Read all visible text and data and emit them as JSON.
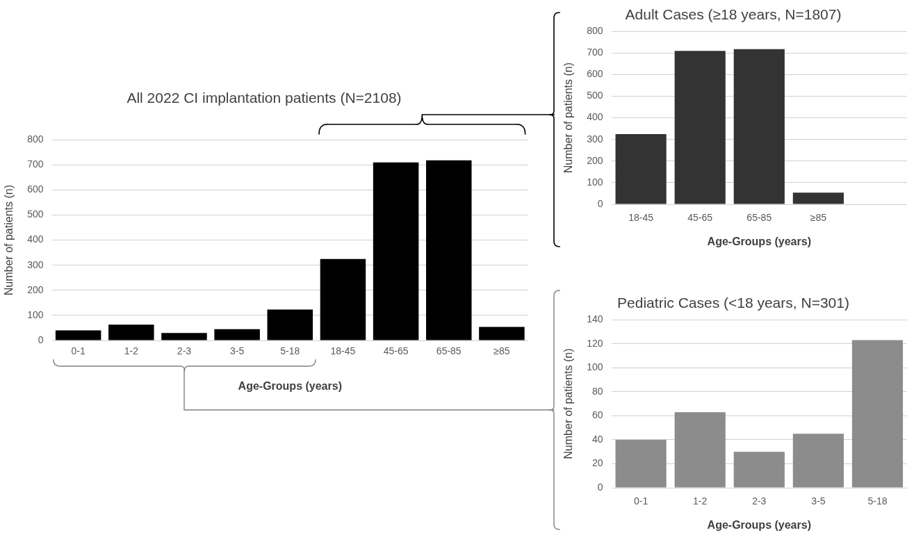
{
  "chart_data": [
    {
      "type": "bar",
      "title": "All 2022 CI implantation patients (N=2108)",
      "xlabel": "Age-Groups (years)",
      "ylabel": "Number of patients (n)",
      "categories": [
        "0-1",
        "1-2",
        "2-3",
        "3-5",
        "5-18",
        "18-45",
        "45-65",
        "65-85",
        "≥85"
      ],
      "values": [
        40,
        63,
        30,
        45,
        123,
        325,
        710,
        718,
        54
      ],
      "color": "#000000",
      "ylim": [
        0,
        800
      ],
      "yticks": [
        0,
        100,
        200,
        300,
        400,
        500,
        600,
        700,
        800
      ],
      "grid": "y"
    },
    {
      "type": "bar",
      "title": "Adult Cases (≥18 years, N=1807)",
      "xlabel": "Age-Groups (years)",
      "ylabel": "Number of patients (n)",
      "categories": [
        "18-45",
        "45-65",
        "65-85",
        "≥85",
        null
      ],
      "values": [
        325,
        710,
        718,
        54,
        null
      ],
      "color": "#333333",
      "ylim": [
        0,
        800
      ],
      "yticks": [
        0,
        100,
        200,
        300,
        400,
        500,
        600,
        700,
        800
      ],
      "grid": "y"
    },
    {
      "type": "bar",
      "title": "Pediatric Cases (<18 years, N=301)",
      "xlabel": "Age-Groups (years)",
      "ylabel": "Number of patients (n)",
      "categories": [
        "0-1",
        "1-2",
        "2-3",
        "3-5",
        "5-18"
      ],
      "values": [
        40,
        63,
        30,
        45,
        123
      ],
      "color": "#8c8c8c",
      "ylim": [
        0,
        140
      ],
      "yticks": [
        0,
        20,
        40,
        60,
        80,
        100,
        120,
        140
      ],
      "grid": "y"
    }
  ]
}
